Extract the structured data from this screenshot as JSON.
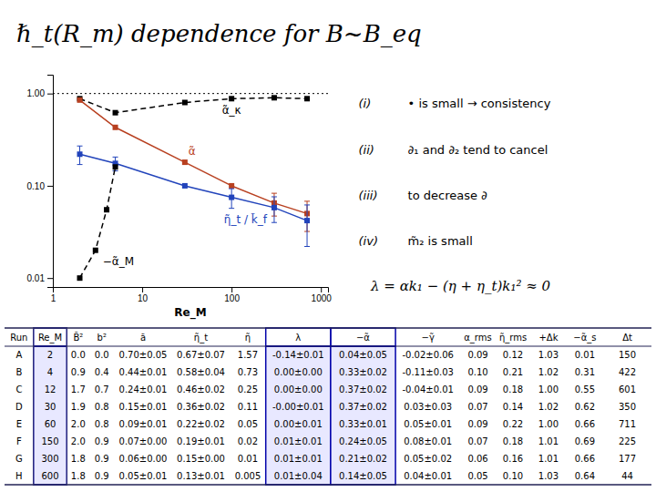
{
  "chart_data": [
    {
      "type": "line",
      "title": "ℏ_t(R_m)  dependence for B~B_eq",
      "x_label": "Re_M",
      "log": true,
      "xlim": [
        1,
        1200
      ],
      "ylim": [
        0.008,
        1.6
      ],
      "xticks": [
        1,
        10,
        100,
        1000
      ],
      "yticks": [
        0.01,
        {
          "value": 0.1,
          "label": "0.10"
        },
        {
          "value": 1,
          "label": "1.00"
        }
      ],
      "hline": 1.0,
      "series": [
        {
          "name": "α̃_κ",
          "color": "#000000",
          "line_style": "dashed",
          "marker": "square",
          "x": [
            2,
            5,
            30,
            100,
            300,
            700
          ],
          "values": [
            0.88,
            0.62,
            0.8,
            0.88,
            0.9,
            0.88
          ]
        },
        {
          "name": "α̃",
          "color": "#b84020",
          "line_style": "solid",
          "marker": "square",
          "x": [
            2,
            5,
            30,
            100,
            300,
            700
          ],
          "values": [
            0.85,
            0.43,
            0.18,
            0.1,
            0.065,
            0.05
          ],
          "errors": [
            null,
            null,
            null,
            null,
            0.018,
            0.018
          ]
        },
        {
          "name": "η̃_t / k̃_f",
          "color": "#2244bb",
          "line_style": "solid",
          "marker": "square",
          "x": [
            2,
            5,
            30,
            100,
            300,
            700
          ],
          "values": [
            0.22,
            0.175,
            0.1,
            0.075,
            0.058,
            0.042
          ],
          "errors": [
            0.05,
            0.03,
            null,
            0.018,
            0.018,
            0.02
          ]
        },
        {
          "name": "−α̃_M",
          "color": "#000000",
          "line_style": "dashed",
          "marker": "square",
          "x": [
            2,
            3,
            4,
            5
          ],
          "values": [
            0.01,
            0.02,
            0.055,
            0.16
          ]
        }
      ],
      "annotations": [
        {
          "label": "(i)",
          "text": "• is small → consistency"
        },
        {
          "label": "(ii)",
          "text": "∂₁ and ∂₂ tend to cancel"
        },
        {
          "label": "(iii)",
          "text": "to decrease ∂"
        },
        {
          "label": "(iv)",
          "text": "m̃₂ is small"
        }
      ],
      "equation": "λ = αk₁ − (η + η_t)k₁² ≈ 0"
    },
    {
      "type": "table",
      "columns": [
        "Run",
        "Re_M",
        "B̃²",
        "b²",
        "ã",
        "η̃_t",
        "η̃",
        "λ",
        "−α̃",
        "−γ̃",
        "α_rms",
        "η̃_rms",
        "+Δk",
        "−α̃_s",
        "Δt"
      ],
      "rows": [
        [
          "A",
          "2",
          "0.0",
          "0.0",
          "0.70±0.05",
          "0.67±0.07",
          "1.57",
          "-0.14±0.01",
          "0.04±0.05",
          "-0.02±0.06",
          "0.09",
          "0.12",
          "1.03",
          "0.01",
          "150"
        ],
        [
          "B",
          "4",
          "0.9",
          "0.4",
          "0.44±0.01",
          "0.58±0.04",
          "0.73",
          "0.00±0.00",
          "0.33±0.02",
          "-0.11±0.03",
          "0.10",
          "0.21",
          "1.02",
          "0.31",
          "422"
        ],
        [
          "C",
          "12",
          "1.7",
          "0.7",
          "0.24±0.01",
          "0.46±0.02",
          "0.25",
          "0.00±0.00",
          "0.37±0.02",
          "-0.04±0.01",
          "0.09",
          "0.18",
          "1.00",
          "0.55",
          "601"
        ],
        [
          "D",
          "30",
          "1.9",
          "0.8",
          "0.15±0.01",
          "0.36±0.02",
          "0.11",
          "-0.00±0.01",
          "0.37±0.02",
          "0.03±0.03",
          "0.07",
          "0.14",
          "1.02",
          "0.62",
          "350"
        ],
        [
          "E",
          "60",
          "2.0",
          "0.8",
          "0.09±0.01",
          "0.22±0.02",
          "0.05",
          "0.00±0.01",
          "0.33±0.01",
          "0.05±0.01",
          "0.09",
          "0.22",
          "1.00",
          "0.66",
          "711"
        ],
        [
          "F",
          "150",
          "2.0",
          "0.9",
          "0.07±0.00",
          "0.19±0.01",
          "0.02",
          "0.01±0.01",
          "0.24±0.05",
          "0.08±0.01",
          "0.07",
          "0.18",
          "1.01",
          "0.69",
          "225"
        ],
        [
          "G",
          "300",
          "1.8",
          "0.9",
          "0.06±0.00",
          "0.15±0.00",
          "0.01",
          "0.01±0.01",
          "0.21±0.02",
          "0.05±0.02",
          "0.06",
          "0.16",
          "1.01",
          "0.66",
          "177"
        ],
        [
          "H",
          "600",
          "1.8",
          "0.9",
          "0.05±0.01",
          "0.13±0.01",
          "0.005",
          "0.01±0.04",
          "0.14±0.05",
          "0.04±0.01",
          "0.05",
          "0.10",
          "1.03",
          "0.64",
          "44"
        ]
      ]
    }
  ]
}
